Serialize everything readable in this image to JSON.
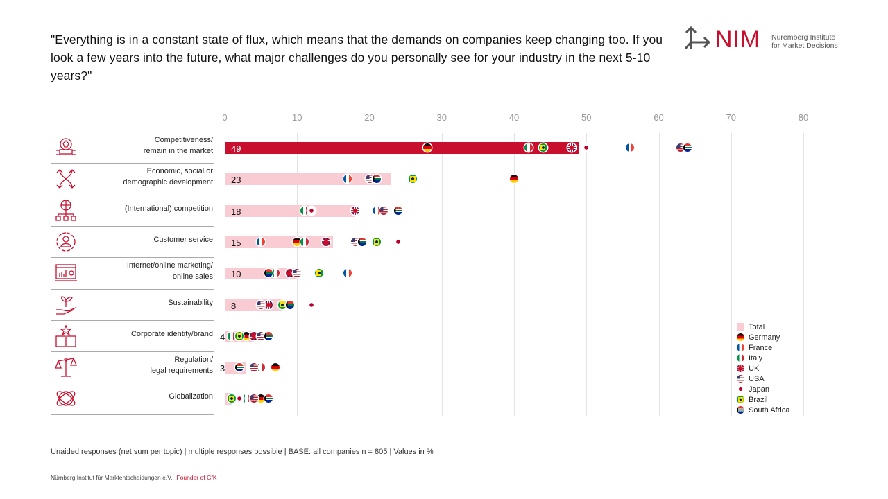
{
  "question": "\"Everything is in a constant state of flux, which means that the demands on companies keep changing too. If you look a few years into the future, what major challenges do you personally see for your industry in the next 5-10 years?\"",
  "logo": {
    "mark": "NIM",
    "line1": "Nuremberg Institute",
    "line2": "for Market Decisions"
  },
  "colors": {
    "accent": "#c8102e",
    "total_bar": "#f9ccd4",
    "highlight_bar": "#c8102e"
  },
  "chart_data": {
    "type": "bar",
    "orientation": "horizontal",
    "title": "",
    "xlim": [
      0,
      80
    ],
    "xticks": [
      "0",
      "10",
      "20",
      "30",
      "40",
      "50",
      "60",
      "70",
      "80"
    ],
    "grid": true,
    "legend_position": "bottom-right",
    "categories": [
      {
        "label_lines": [
          "Competitiveness/",
          "remain in the market"
        ],
        "icon": "award-icon"
      },
      {
        "label_lines": [
          "Economic, social or",
          "demographic development"
        ],
        "icon": "crossing-arrows-icon"
      },
      {
        "label_lines": [
          "(International) competition"
        ],
        "icon": "globe-network-icon"
      },
      {
        "label_lines": [
          "Customer service"
        ],
        "icon": "gear-person-icon"
      },
      {
        "label_lines": [
          "Internet/online marketing/",
          "online sales"
        ],
        "icon": "laptop-chart-icon"
      },
      {
        "label_lines": [
          "Sustainability"
        ],
        "icon": "plant-hand-icon"
      },
      {
        "label_lines": [
          "Corporate identity/brand"
        ],
        "icon": "buildings-star-icon"
      },
      {
        "label_lines": [
          "Regulation/",
          "legal requirements"
        ],
        "icon": "scales-icon"
      },
      {
        "label_lines": [
          "Globalization"
        ],
        "icon": "globe-orbit-icon"
      }
    ],
    "total": [
      49,
      23,
      18,
      15,
      10,
      8,
      4,
      3,
      1
    ],
    "total_labels": [
      "49",
      "23",
      "18",
      "15",
      "10",
      "8",
      "4",
      "3",
      ""
    ],
    "series": [
      {
        "name": "Germany",
        "key": "de",
        "values": [
          28,
          40,
          11,
          10,
          7,
          5,
          3,
          7,
          5
        ]
      },
      {
        "name": "France",
        "key": "fr",
        "values": [
          56,
          17,
          21,
          5,
          17,
          5,
          4,
          5,
          3
        ]
      },
      {
        "name": "Italy",
        "key": "it",
        "values": [
          42,
          21,
          11,
          11,
          7,
          6,
          1,
          5,
          3
        ]
      },
      {
        "name": "UK",
        "key": "uk",
        "values": [
          48,
          21,
          18,
          14,
          9,
          6,
          4,
          4,
          2
        ]
      },
      {
        "name": "USA",
        "key": "us",
        "values": [
          63,
          20,
          22,
          18,
          10,
          5,
          5,
          4,
          4
        ]
      },
      {
        "name": "Japan",
        "key": "jp",
        "values": [
          50,
          21,
          12,
          24,
          6,
          12,
          2,
          2,
          2
        ]
      },
      {
        "name": "Brazil",
        "key": "br",
        "values": [
          44,
          26,
          24,
          21,
          13,
          8,
          2,
          2,
          1
        ]
      },
      {
        "name": "South Africa",
        "key": "za",
        "values": [
          64,
          21,
          24,
          19,
          6,
          9,
          6,
          2,
          6
        ]
      }
    ],
    "legend": [
      "Total",
      "Germany",
      "France",
      "Italy",
      "UK",
      "USA",
      "Japan",
      "Brazil",
      "South Africa"
    ]
  },
  "footnote": "Unaided responses  (net sum per topic) | multiple responses  possible  | BASE:  all companies n = 805 | Values  in %",
  "footer": {
    "org": "Nürnberg Institut für Marktentscheidungen e.V.",
    "tagline": "Founder of GfK"
  }
}
